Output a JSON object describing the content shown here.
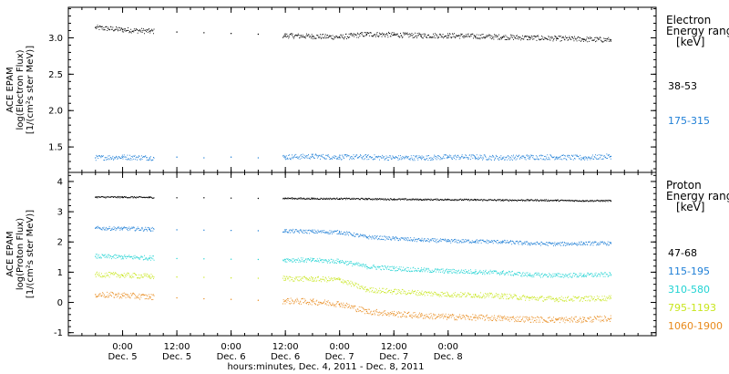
{
  "chart_data": [
    {
      "type": "scatter",
      "ylabel_lines": [
        "ACE EPAM",
        "log(Electron Flux)",
        "[1/(cm²s ster MeV)]"
      ],
      "ylim": [
        1.15,
        3.42
      ],
      "yticks": [
        1.5,
        2.0,
        2.5,
        3.0
      ],
      "ytick_labels": [
        "1.5",
        "2.0",
        "2.5",
        "3.0"
      ],
      "legend_title": [
        "Electron",
        "Energy range",
        "[keV]"
      ],
      "data_gap_hours": [
        78.9,
        107.3
      ],
      "series": [
        {
          "name": "38-53",
          "color": "#000000",
          "x_hours": [
            66,
            72,
            78,
            84,
            90,
            96,
            102,
            108,
            114,
            120,
            126,
            132,
            138,
            144,
            150,
            156,
            162,
            168,
            174,
            180
          ],
          "values": [
            3.14,
            3.11,
            3.09,
            3.08,
            3.07,
            3.06,
            3.05,
            3.03,
            3.02,
            3.01,
            3.05,
            3.04,
            3.03,
            3.03,
            3.02,
            3.01,
            3.0,
            2.99,
            2.98,
            2.97
          ]
        },
        {
          "name": "175-315",
          "color": "#1f7fd6",
          "x_hours": [
            66,
            72,
            78,
            84,
            90,
            96,
            102,
            108,
            114,
            120,
            126,
            132,
            138,
            144,
            150,
            156,
            162,
            168,
            174,
            180
          ],
          "values": [
            1.35,
            1.36,
            1.35,
            1.36,
            1.35,
            1.36,
            1.35,
            1.36,
            1.37,
            1.36,
            1.36,
            1.35,
            1.35,
            1.36,
            1.36,
            1.35,
            1.36,
            1.36,
            1.35,
            1.37
          ]
        }
      ]
    },
    {
      "type": "scatter",
      "ylabel_lines": [
        "ACE EPAM",
        "log(Proton Flux)",
        "[1/(cm²s ster MeV)]"
      ],
      "ylim": [
        -1.1,
        4.3
      ],
      "yticks": [
        -1,
        0,
        1,
        2,
        3,
        4
      ],
      "ytick_labels": [
        "-1",
        "0",
        "1",
        "2",
        "3",
        "4"
      ],
      "legend_title": [
        "Proton",
        "Energy range",
        "[keV]"
      ],
      "data_gap_hours": [
        78.9,
        107.3
      ],
      "series": [
        {
          "name": "47-68",
          "color": "#000000",
          "x_hours": [
            66,
            72,
            78,
            84,
            90,
            96,
            102,
            108,
            114,
            120,
            126,
            132,
            138,
            144,
            150,
            156,
            162,
            168,
            174,
            180
          ],
          "values": [
            3.48,
            3.48,
            3.47,
            3.46,
            3.46,
            3.45,
            3.44,
            3.44,
            3.43,
            3.43,
            3.42,
            3.41,
            3.4,
            3.4,
            3.39,
            3.38,
            3.38,
            3.37,
            3.36,
            3.36
          ]
        },
        {
          "name": "115-195",
          "color": "#1f7fd6",
          "x_hours": [
            66,
            72,
            78,
            84,
            90,
            96,
            102,
            108,
            114,
            120,
            126,
            132,
            138,
            144,
            150,
            156,
            162,
            168,
            174,
            180
          ],
          "values": [
            2.45,
            2.44,
            2.42,
            2.4,
            2.39,
            2.38,
            2.37,
            2.36,
            2.34,
            2.32,
            2.16,
            2.11,
            2.06,
            2.03,
            2.02,
            2.0,
            1.95,
            1.93,
            1.95,
            1.95
          ]
        },
        {
          "name": "310-580",
          "color": "#22d3d3",
          "x_hours": [
            66,
            72,
            78,
            84,
            90,
            96,
            102,
            108,
            114,
            120,
            126,
            132,
            138,
            144,
            150,
            156,
            162,
            168,
            174,
            180
          ],
          "values": [
            1.52,
            1.5,
            1.47,
            1.45,
            1.44,
            1.43,
            1.42,
            1.41,
            1.39,
            1.36,
            1.18,
            1.12,
            1.07,
            1.03,
            1.01,
            0.98,
            0.91,
            0.89,
            0.9,
            0.92
          ]
        },
        {
          "name": "795-1193",
          "color": "#c8e61e",
          "x_hours": [
            66,
            72,
            78,
            84,
            90,
            96,
            102,
            108,
            114,
            120,
            126,
            132,
            138,
            144,
            150,
            156,
            162,
            168,
            174,
            180
          ],
          "values": [
            0.92,
            0.9,
            0.86,
            0.84,
            0.83,
            0.81,
            0.8,
            0.79,
            0.77,
            0.75,
            0.42,
            0.36,
            0.31,
            0.26,
            0.24,
            0.21,
            0.14,
            0.11,
            0.12,
            0.14
          ]
        },
        {
          "name": "1060-1900",
          "color": "#e8891a",
          "x_hours": [
            66,
            72,
            78,
            84,
            90,
            96,
            102,
            108,
            114,
            120,
            126,
            132,
            138,
            144,
            150,
            156,
            162,
            168,
            174,
            180
          ],
          "values": [
            0.26,
            0.23,
            0.18,
            0.15,
            0.12,
            0.1,
            0.07,
            0.05,
            0.02,
            -0.05,
            -0.3,
            -0.38,
            -0.44,
            -0.48,
            -0.5,
            -0.53,
            -0.56,
            -0.58,
            -0.57,
            -0.53
          ]
        }
      ]
    }
  ],
  "x_axis": {
    "range_hours": [
      60,
      190
    ],
    "ticks": [
      {
        "h": 72,
        "time": "0:00",
        "day": "Dec. 5"
      },
      {
        "h": 84,
        "time": "12:00",
        "day": "Dec. 5"
      },
      {
        "h": 96,
        "time": "0:00",
        "day": "Dec. 6"
      },
      {
        "h": 108,
        "time": "12:00",
        "day": "Dec. 6"
      },
      {
        "h": 120,
        "time": "0:00",
        "day": "Dec. 7"
      },
      {
        "h": 132,
        "time": "12:00",
        "day": "Dec. 7"
      },
      {
        "h": 144,
        "time": "0:00",
        "day": "Dec. 8"
      }
    ],
    "label": "hours:minutes, Dec.  4, 2011 - Dec.  8, 2011"
  }
}
